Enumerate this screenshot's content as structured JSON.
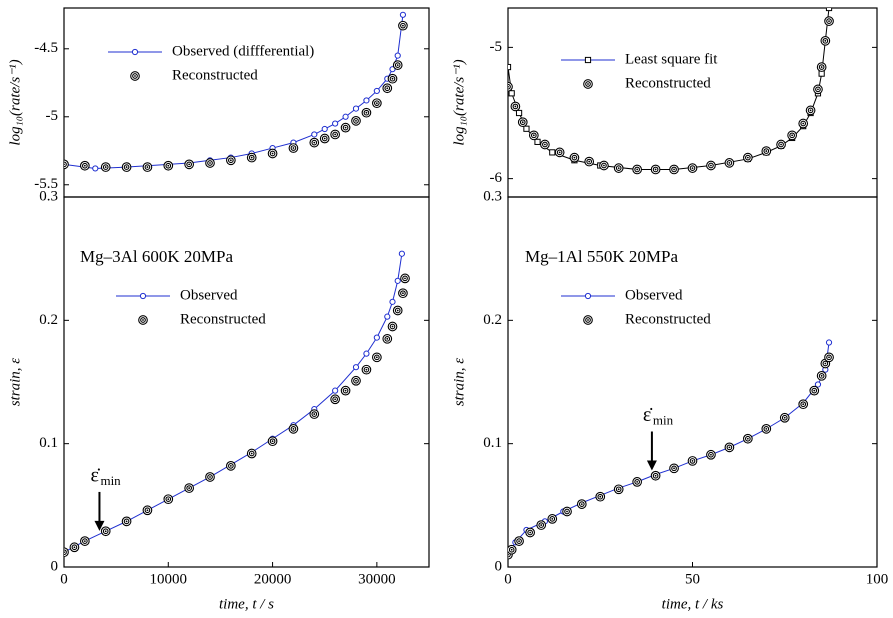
{
  "chart_data": [
    {
      "type": "line",
      "y_label": "log₁₀(rate/s⁻¹)",
      "xlim": [
        0,
        35000
      ],
      "ylim": [
        -5.59,
        -4.2
      ],
      "yticks": [
        -4.5,
        -5,
        -5.5
      ],
      "series": [
        {
          "name": "Observed (diffferential)",
          "color": "#1f2fd0",
          "marker": "circle",
          "line": true,
          "x": [
            0,
            3000,
            6000,
            8000,
            10000,
            12000,
            14000,
            16000,
            18000,
            20000,
            22000,
            24000,
            25000,
            26000,
            27000,
            28000,
            29000,
            30000,
            31000,
            31500,
            32000,
            32500
          ],
          "values": [
            -5.35,
            -5.38,
            -5.37,
            -5.36,
            -5.35,
            -5.34,
            -5.32,
            -5.3,
            -5.27,
            -5.23,
            -5.19,
            -5.13,
            -5.09,
            -5.05,
            -5.0,
            -4.94,
            -4.88,
            -4.81,
            -4.72,
            -4.65,
            -4.55,
            -4.25
          ]
        },
        {
          "name": "Reconstructed",
          "color": "#000000",
          "marker": "target",
          "line": false,
          "x": [
            0,
            2000,
            4000,
            6000,
            8000,
            10000,
            12000,
            14000,
            16000,
            18000,
            20000,
            22000,
            24000,
            25000,
            26000,
            27000,
            28000,
            29000,
            30000,
            31000,
            31500,
            32000,
            32500
          ],
          "values": [
            -5.35,
            -5.36,
            -5.37,
            -5.37,
            -5.37,
            -5.36,
            -5.35,
            -5.34,
            -5.32,
            -5.3,
            -5.27,
            -5.23,
            -5.19,
            -5.16,
            -5.13,
            -5.08,
            -5.03,
            -4.97,
            -4.9,
            -4.79,
            -4.72,
            -4.62,
            -4.33
          ]
        }
      ]
    },
    {
      "type": "line",
      "y_label": "log₁₀(rate/s⁻¹)",
      "xlim": [
        0,
        100
      ],
      "ylim": [
        -6.14,
        -4.7
      ],
      "yticks": [
        -5,
        -6
      ],
      "series": [
        {
          "name": "Least square fit",
          "color": "#1f2fd0",
          "line_color": "#000000",
          "marker": "square",
          "line": true,
          "x": [
            0,
            1,
            3,
            5,
            8,
            12,
            18,
            25,
            35,
            45,
            55,
            65,
            70,
            74,
            77,
            80,
            82,
            84,
            85,
            86,
            87
          ],
          "values": [
            -5.15,
            -5.35,
            -5.5,
            -5.62,
            -5.72,
            -5.8,
            -5.86,
            -5.9,
            -5.93,
            -5.93,
            -5.9,
            -5.85,
            -5.8,
            -5.75,
            -5.69,
            -5.6,
            -5.5,
            -5.35,
            -5.2,
            -4.95,
            -4.7
          ]
        },
        {
          "name": "Reconstructed",
          "color": "#000000",
          "marker": "target",
          "line": false,
          "x": [
            0,
            2,
            4,
            7,
            10,
            14,
            18,
            22,
            26,
            30,
            35,
            40,
            45,
            50,
            55,
            60,
            65,
            70,
            74,
            77,
            80,
            82,
            84,
            85,
            86,
            87
          ],
          "values": [
            -5.3,
            -5.45,
            -5.57,
            -5.67,
            -5.74,
            -5.8,
            -5.84,
            -5.87,
            -5.9,
            -5.92,
            -5.93,
            -5.93,
            -5.93,
            -5.92,
            -5.9,
            -5.88,
            -5.84,
            -5.79,
            -5.74,
            -5.67,
            -5.58,
            -5.48,
            -5.32,
            -5.15,
            -4.95,
            -4.8
          ]
        }
      ]
    },
    {
      "type": "line",
      "title": "Mg–3Al 600K 20MPa",
      "x_label": "time, t / s",
      "y_label": "strain, ε",
      "xlim": [
        0,
        35000
      ],
      "ylim": [
        0,
        0.3
      ],
      "xticks": [
        0,
        10000,
        20000,
        30000
      ],
      "yticks": [
        0,
        0.1,
        0.2,
        0.3
      ],
      "annotation": {
        "text": "ε̇",
        "sub": "min",
        "x": 3400,
        "y": 0.026
      },
      "series": [
        {
          "name": "Observed",
          "color": "#1f2fd0",
          "marker": "circle",
          "line": true,
          "x": [
            0,
            2000,
            4000,
            6000,
            8000,
            10000,
            12000,
            14000,
            16000,
            18000,
            20000,
            22000,
            24000,
            26000,
            28000,
            29000,
            30000,
            31000,
            31500,
            32000,
            32400
          ],
          "values": [
            0.012,
            0.021,
            0.029,
            0.037,
            0.046,
            0.055,
            0.064,
            0.073,
            0.083,
            0.093,
            0.104,
            0.115,
            0.128,
            0.143,
            0.162,
            0.173,
            0.186,
            0.203,
            0.215,
            0.232,
            0.254
          ]
        },
        {
          "name": "Reconstructed",
          "color": "#000000",
          "marker": "target",
          "line": false,
          "x": [
            0,
            1000,
            2000,
            4000,
            6000,
            8000,
            10000,
            12000,
            14000,
            16000,
            18000,
            20000,
            22000,
            24000,
            26000,
            27000,
            28000,
            29000,
            30000,
            31000,
            31500,
            32000,
            32500,
            32700
          ],
          "values": [
            0.012,
            0.016,
            0.021,
            0.029,
            0.037,
            0.046,
            0.055,
            0.064,
            0.073,
            0.082,
            0.092,
            0.102,
            0.112,
            0.124,
            0.136,
            0.143,
            0.151,
            0.16,
            0.17,
            0.185,
            0.195,
            0.208,
            0.222,
            0.234
          ]
        }
      ]
    },
    {
      "type": "line",
      "title": "Mg–1Al 550K 20MPa",
      "x_label": "time, t / ks",
      "y_label": "strain, ε",
      "xlim": [
        0,
        100
      ],
      "ylim": [
        0,
        0.3
      ],
      "xticks": [
        0,
        50,
        100
      ],
      "yticks": [
        0,
        0.1,
        0.2,
        0.3
      ],
      "annotation": {
        "text": "ε̇",
        "sub": "min",
        "x": 39,
        "y": 0.075
      },
      "series": [
        {
          "name": "Observed",
          "color": "#1f2fd0",
          "marker": "circle",
          "line": true,
          "x": [
            0,
            2,
            5,
            10,
            15,
            20,
            25,
            30,
            35,
            40,
            45,
            50,
            55,
            60,
            65,
            70,
            75,
            80,
            84,
            86,
            87
          ],
          "values": [
            0.01,
            0.02,
            0.03,
            0.037,
            0.045,
            0.052,
            0.058,
            0.064,
            0.069,
            0.075,
            0.08,
            0.086,
            0.091,
            0.097,
            0.104,
            0.112,
            0.121,
            0.133,
            0.148,
            0.16,
            0.182
          ]
        },
        {
          "name": "Reconstructed",
          "color": "#000000",
          "marker": "target",
          "line": false,
          "x": [
            0,
            1,
            3,
            6,
            9,
            12,
            16,
            20,
            25,
            30,
            35,
            40,
            45,
            50,
            55,
            60,
            65,
            70,
            75,
            80,
            83,
            85,
            86,
            87
          ],
          "values": [
            0.01,
            0.014,
            0.021,
            0.028,
            0.034,
            0.039,
            0.045,
            0.051,
            0.057,
            0.063,
            0.069,
            0.074,
            0.08,
            0.086,
            0.091,
            0.097,
            0.104,
            0.112,
            0.121,
            0.132,
            0.143,
            0.155,
            0.165,
            0.17
          ]
        }
      ]
    }
  ]
}
